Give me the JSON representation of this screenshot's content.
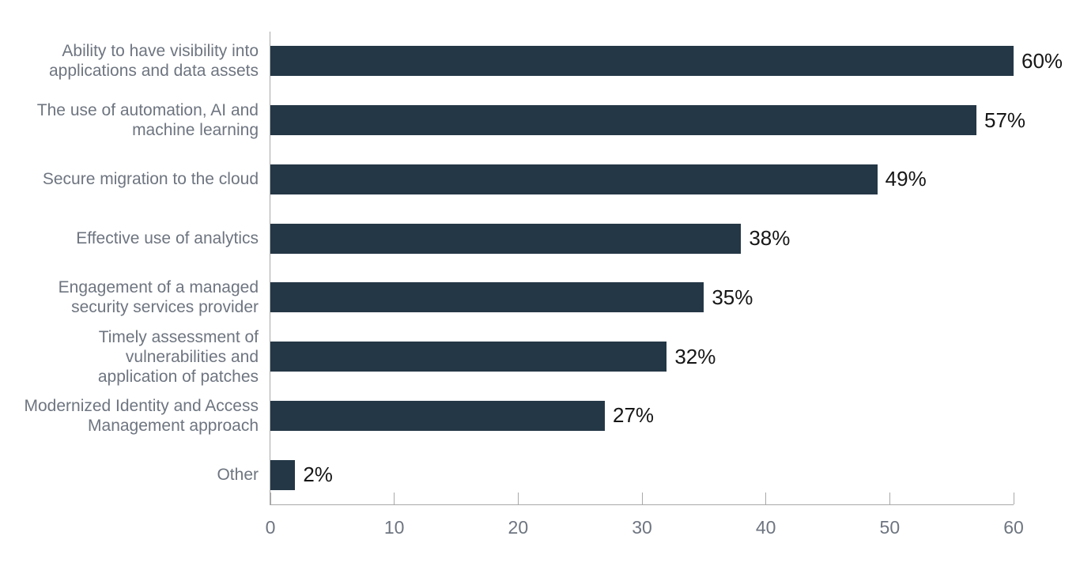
{
  "chart_data": {
    "type": "bar",
    "orientation": "horizontal",
    "title": "",
    "xlabel": "",
    "ylabel": "",
    "grid": false,
    "legend_position": "none",
    "xlim": [
      0,
      60
    ],
    "x_ticks": [
      "0",
      "10",
      "20",
      "30",
      "40",
      "50",
      "60"
    ],
    "categories": [
      "Ability to have visibility into applications and data assets",
      "The use of automation, AI and machine learning",
      "Secure migration to the cloud",
      "Effective use of analytics",
      "Engagement of a managed security services provider",
      "Timely assessment of vulnerabilities and application of patches",
      "Modernized Identity and Access Management approach",
      "Other"
    ],
    "category_lines": [
      [
        "Ability to have visibility into",
        "applications and data assets"
      ],
      [
        "The use of automation, AI and",
        "machine learning"
      ],
      [
        "Secure migration to the cloud"
      ],
      [
        "Effective use of analytics"
      ],
      [
        "Engagement of a managed",
        "security services provider"
      ],
      [
        "Timely assessment of",
        "vulnerabilities and",
        "application of patches"
      ],
      [
        "Modernized Identity and Access",
        "Management approach"
      ],
      [
        "Other"
      ]
    ],
    "values": [
      60,
      57,
      49,
      38,
      35,
      32,
      27,
      2
    ],
    "value_labels": [
      "60%",
      "57%",
      "49%",
      "38%",
      "35%",
      "32%",
      "27%",
      "2%"
    ],
    "colors": {
      "bar": "#243746",
      "category_label": "#6e7580",
      "value_label": "#161616",
      "tick_label": "#6e7580",
      "axis": "#a9a9a9",
      "background": "#ffffff"
    }
  }
}
